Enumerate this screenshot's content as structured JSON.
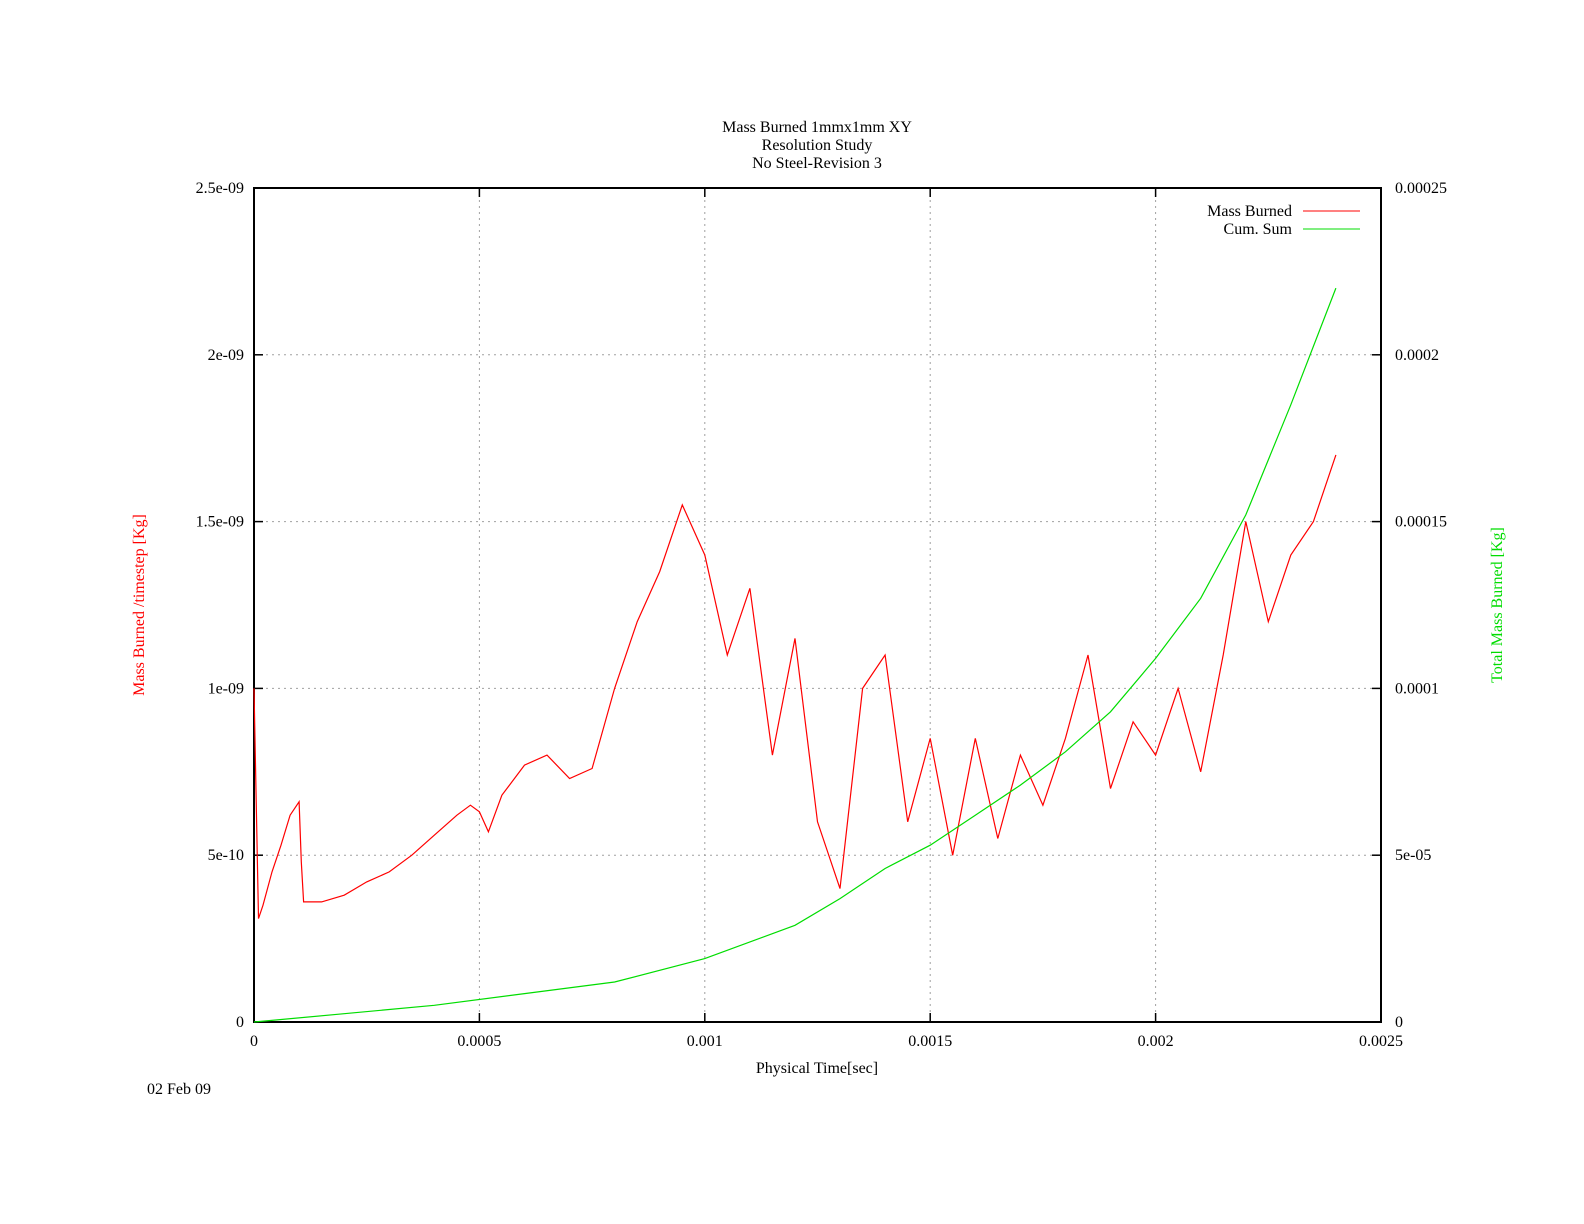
{
  "footer": {
    "date": "02 Feb 09"
  },
  "colors": {
    "mass_burned": "#ff0000",
    "cum_sum": "#00dd00",
    "grid": "#a0a0a0",
    "axis": "#000000"
  },
  "chart_data": {
    "type": "line",
    "title": [
      "Mass Burned 1mmx1mm XY",
      "Resolution Study",
      "No Steel-Revision 3"
    ],
    "xlabel": "Physical Time[sec]",
    "ylabel": "Mass Burned /timestep  [Kg]",
    "y2label": "Total Mass Burned [Kg]",
    "xlim": [
      0,
      0.0025
    ],
    "ylim": [
      0,
      2.5e-09
    ],
    "y2lim": [
      0,
      0.00025
    ],
    "x_ticks": [
      "0",
      "0.0005",
      "0.001",
      "0.0015",
      "0.002",
      "0.0025"
    ],
    "y_ticks": [
      "0",
      "5e-10",
      "1e-09",
      "1.5e-09",
      "2e-09",
      "2.5e-09"
    ],
    "y2_ticks": [
      "0",
      "5e-05",
      "0.0001",
      "0.00015",
      "0.0002",
      "0.00025"
    ],
    "grid": true,
    "legend_position": "top-right",
    "series": [
      {
        "name": "Mass Burned",
        "axis": "y",
        "color": "#ff0000",
        "x": [
          0.0,
          1e-05,
          2e-05,
          4e-05,
          6e-05,
          8e-05,
          0.0001,
          0.000105,
          0.00011,
          0.00012,
          0.00015,
          0.0002,
          0.00025,
          0.0003,
          0.00035,
          0.0004,
          0.00045,
          0.00048,
          0.0005,
          0.00052,
          0.00055,
          0.0006,
          0.00065,
          0.0007,
          0.00075,
          0.0008,
          0.00085,
          0.0009,
          0.00095,
          0.001,
          0.00105,
          0.0011,
          0.00115,
          0.0012,
          0.00125,
          0.0013,
          0.00135,
          0.0014,
          0.00145,
          0.0015,
          0.00155,
          0.0016,
          0.00165,
          0.0017,
          0.00175,
          0.0018,
          0.00185,
          0.0019,
          0.00195,
          0.002,
          0.00205,
          0.0021,
          0.00215,
          0.0022,
          0.00225,
          0.0023,
          0.00235,
          0.0024
        ],
        "y": [
          1e-09,
          3.1e-10,
          3.5e-10,
          4.5e-10,
          5.3e-10,
          6.2e-10,
          6.6e-10,
          4.8e-10,
          3.6e-10,
          3.6e-10,
          3.6e-10,
          3.8e-10,
          4.2e-10,
          4.5e-10,
          5e-10,
          5.6e-10,
          6.2e-10,
          6.5e-10,
          6.3e-10,
          5.7e-10,
          6.8e-10,
          7.7e-10,
          8e-10,
          7.3e-10,
          7.6e-10,
          1e-09,
          1.2e-09,
          1.35e-09,
          1.55e-09,
          1.4e-09,
          1.1e-09,
          1.3e-09,
          8e-10,
          1.15e-09,
          6e-10,
          4e-10,
          1e-09,
          1.1e-09,
          6e-10,
          8.5e-10,
          5e-10,
          8.5e-10,
          5.5e-10,
          8e-10,
          6.5e-10,
          8.5e-10,
          1.1e-09,
          7e-10,
          9e-10,
          8e-10,
          1e-09,
          7.5e-10,
          1.1e-09,
          1.5e-09,
          1.2e-09,
          1.4e-09,
          1.5e-09,
          1.7e-09
        ]
      },
      {
        "name": "Cum. Sum",
        "axis": "y2",
        "color": "#00dd00",
        "x": [
          0.0,
          0.0002,
          0.0004,
          0.0006,
          0.0008,
          0.001,
          0.0012,
          0.0013,
          0.0014,
          0.0015,
          0.0016,
          0.0017,
          0.0018,
          0.0019,
          0.002,
          0.0021,
          0.0022,
          0.0023,
          0.0024
        ],
        "y": [
          0.0,
          2.5e-06,
          5e-06,
          8.5e-06,
          1.2e-05,
          1.9e-05,
          2.9e-05,
          3.7e-05,
          4.6e-05,
          5.3e-05,
          6.2e-05,
          7.1e-05,
          8.1e-05,
          9.3e-05,
          0.000109,
          0.000127,
          0.000152,
          0.000185,
          0.00022
        ]
      }
    ]
  }
}
